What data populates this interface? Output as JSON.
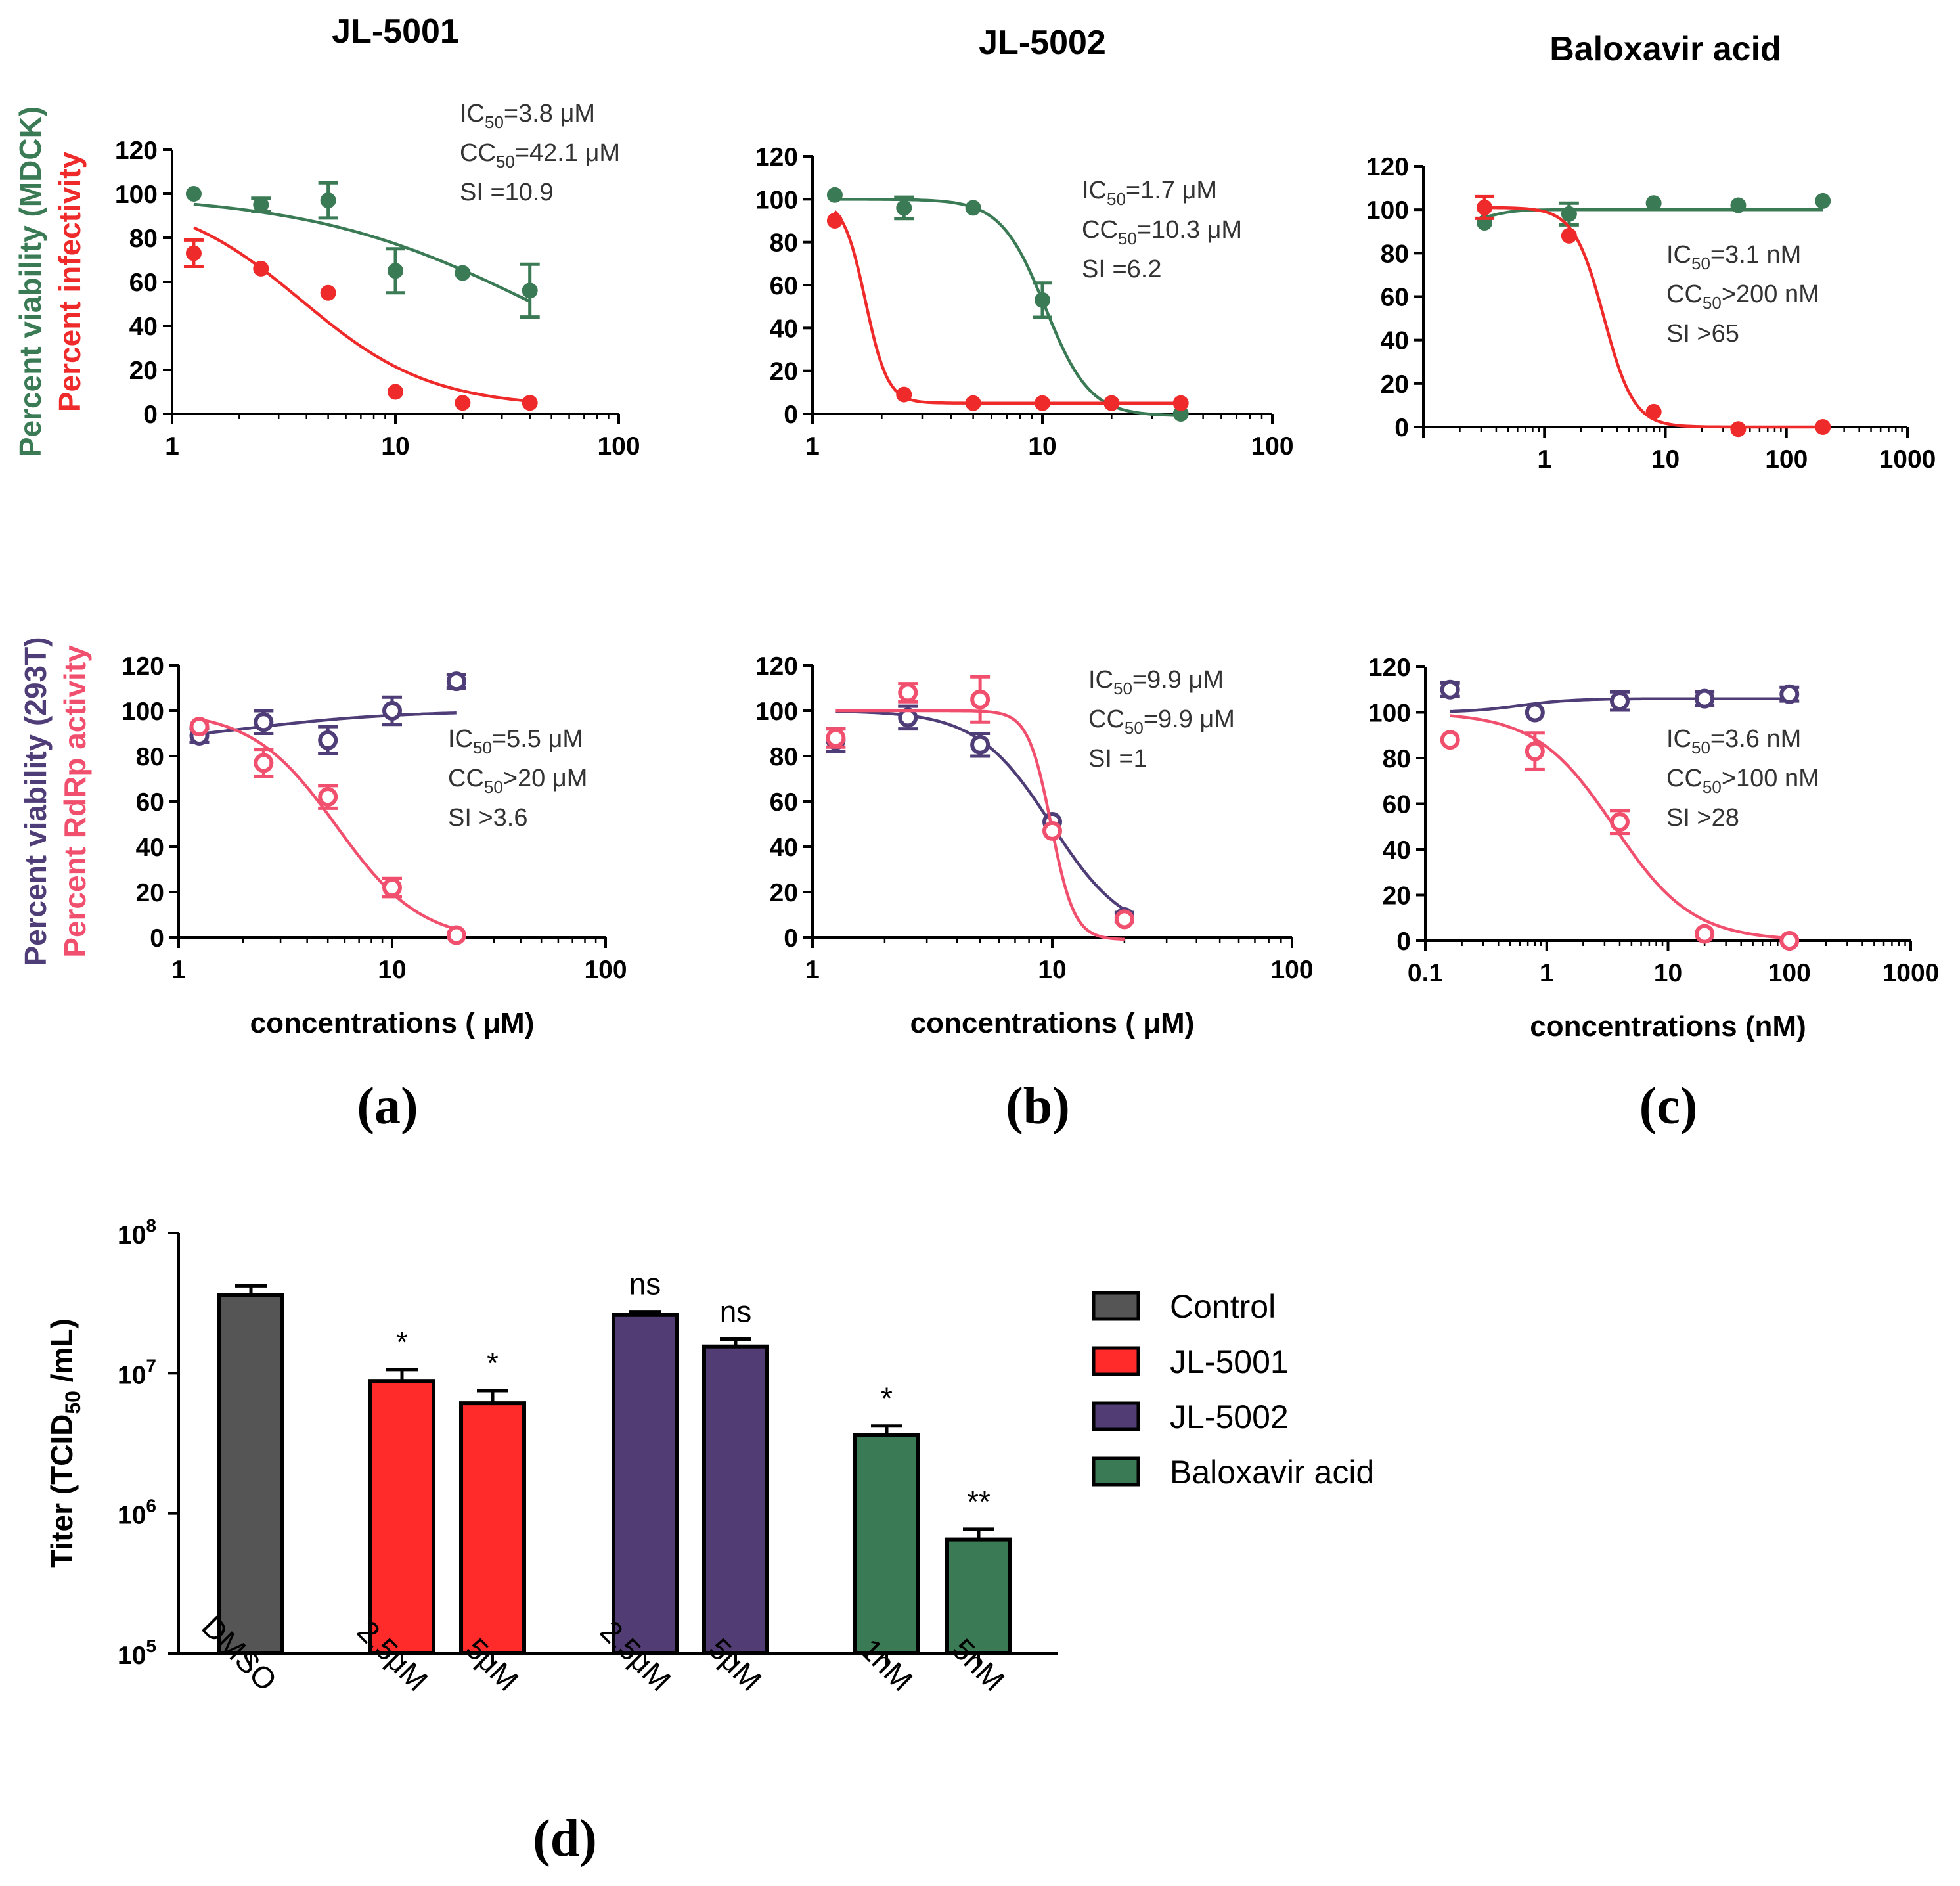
{
  "chart_data": [
    {
      "id": "a-top",
      "type": "scatter",
      "title": "JL-5001",
      "xscale": "log",
      "xlim": [
        1,
        100
      ],
      "ylim": [
        0,
        120
      ],
      "xticks": [
        "1",
        "10",
        "100"
      ],
      "yticks": [
        "0",
        "20",
        "40",
        "60",
        "80",
        "100",
        "120"
      ],
      "ylabel_lines": [
        {
          "text": "Percent viability (MDCK)",
          "color": "#3a7a55"
        },
        {
          "text": "Percent infectivity",
          "color": "#ee2a2a"
        }
      ],
      "xlabel": "",
      "annotations": [
        {
          "pre": "IC",
          "sub": "50",
          "post": "=3.8  μM"
        },
        {
          "pre": "CC",
          "sub": "50",
          "post": "=42.1 μM"
        },
        {
          "pre": "SI =10.9",
          "sub": "",
          "post": ""
        }
      ],
      "series": [
        {
          "name": "Percent viability (MDCK)",
          "color": "#3a7a55",
          "marker": "filled",
          "x": [
            1.25,
            2.5,
            5,
            10,
            20,
            40
          ],
          "y": [
            100,
            95,
            97,
            65,
            64,
            56
          ],
          "err": [
            0,
            3,
            8,
            10,
            0,
            12
          ],
          "fit": {
            "top": 100,
            "bottom": 0,
            "ec50": 42.1,
            "hill": 0.85,
            "xmin": 1.25,
            "xmax": 40
          }
        },
        {
          "name": "Percent infectivity",
          "color": "#ee2a2a",
          "marker": "filled",
          "x": [
            1.25,
            2.5,
            5,
            10,
            20,
            40
          ],
          "y": [
            73,
            66,
            55,
            10,
            5,
            5
          ],
          "err": [
            6,
            0,
            0,
            0,
            0,
            0
          ],
          "fit": {
            "top": 100,
            "bottom": 3,
            "ec50": 3.8,
            "hill": 1.5,
            "xmin": 1.25,
            "xmax": 40
          }
        }
      ]
    },
    {
      "id": "b-top",
      "type": "scatter",
      "title": "JL-5002",
      "xscale": "log",
      "xlim": [
        1,
        100
      ],
      "ylim": [
        0,
        120
      ],
      "xticks": [
        "1",
        "10",
        "100"
      ],
      "yticks": [
        "0",
        "20",
        "40",
        "60",
        "80",
        "100",
        "120"
      ],
      "xlabel": "",
      "annotations": [
        {
          "pre": "IC",
          "sub": "50",
          "post": "=1.7  μM"
        },
        {
          "pre": "CC",
          "sub": "50",
          "post": "=10.3  μM"
        },
        {
          "pre": "SI =6.2",
          "sub": "",
          "post": ""
        }
      ],
      "series": [
        {
          "name": "Percent viability (MDCK)",
          "color": "#3a7a55",
          "marker": "filled",
          "x": [
            1.25,
            2.5,
            5,
            10,
            20,
            40
          ],
          "y": [
            102,
            96,
            96,
            53,
            5,
            0
          ],
          "err": [
            0,
            5,
            0,
            8,
            0,
            0
          ],
          "fit": {
            "top": 100,
            "bottom": -1,
            "ec50": 10.3,
            "hill": 4.5,
            "xmin": 1.25,
            "xmax": 40
          }
        },
        {
          "name": "Percent infectivity",
          "color": "#ee2a2a",
          "marker": "filled",
          "x": [
            1.25,
            2.5,
            5,
            10,
            20,
            40
          ],
          "y": [
            90,
            9,
            5,
            5,
            5,
            5
          ],
          "err": [
            0,
            0,
            0,
            0,
            0,
            0
          ],
          "fit": {
            "top": 100,
            "bottom": 5,
            "ec50": 1.7,
            "hill": 9,
            "xmin": 1.25,
            "xmax": 40
          }
        }
      ]
    },
    {
      "id": "c-top",
      "type": "scatter",
      "title": "Baloxavir acid",
      "xscale": "log",
      "xlim": [
        0.1,
        1000
      ],
      "ylim": [
        0,
        120
      ],
      "xticks": [
        "1",
        "10",
        "100",
        "1000"
      ],
      "yticks": [
        "0",
        "20",
        "40",
        "60",
        "80",
        "100",
        "120"
      ],
      "xlabel": "",
      "annotations": [
        {
          "pre": "IC",
          "sub": "50",
          "post": "=3.1  nM"
        },
        {
          "pre": "CC",
          "sub": "50",
          "post": ">200 nM"
        },
        {
          "pre": "SI >65",
          "sub": "",
          "post": ""
        }
      ],
      "series": [
        {
          "name": "Percent viability (MDCK)",
          "color": "#3a7a55",
          "marker": "filled",
          "x": [
            0.32,
            1.6,
            8,
            40,
            200
          ],
          "y": [
            94,
            98,
            103,
            102,
            104
          ],
          "err": [
            0,
            5,
            0,
            0,
            0
          ],
          "fit": {
            "top": 100,
            "bottom": 94,
            "ec50": 0.35,
            "hill": -4,
            "xmin": 0.32,
            "xmax": 200
          }
        },
        {
          "name": "Percent infectivity",
          "color": "#ee2a2a",
          "marker": "filled",
          "x": [
            0.32,
            1.6,
            8,
            40,
            200
          ],
          "y": [
            101,
            88,
            7,
            -1,
            0
          ],
          "err": [
            5,
            0,
            0,
            0,
            0
          ],
          "fit": {
            "top": 101,
            "bottom": 0,
            "ec50": 3.1,
            "hill": 3.5,
            "xmin": 0.32,
            "xmax": 200
          }
        }
      ]
    },
    {
      "id": "a-bottom",
      "type": "scatter",
      "title": "",
      "xscale": "log",
      "xlim": [
        1,
        100
      ],
      "ylim": [
        0,
        120
      ],
      "xticks": [
        "1",
        "10",
        "100"
      ],
      "yticks": [
        "0",
        "20",
        "40",
        "60",
        "80",
        "100",
        "120"
      ],
      "ylabel_lines": [
        {
          "text": "Percent viability (293T)",
          "color": "#4f3d78"
        },
        {
          "text": "Percent RdRp activity",
          "color": "#f0506e"
        }
      ],
      "xlabel": "concentrations ( μM)",
      "annotations": [
        {
          "pre": "IC",
          "sub": "50",
          "post": "=5.5  μM"
        },
        {
          "pre": "CC",
          "sub": "50",
          "post": ">20  μM"
        },
        {
          "pre": "SI >3.6",
          "sub": "",
          "post": ""
        }
      ],
      "series": [
        {
          "name": "Percent viability (293T)",
          "color": "#4f3d78",
          "marker": "open",
          "x": [
            1.25,
            2.5,
            5,
            10,
            20
          ],
          "y": [
            89,
            95,
            87,
            100,
            113
          ],
          "err": [
            3,
            5,
            6,
            6,
            3
          ],
          "fit": {
            "top": 100,
            "bottom": 84,
            "ec50": 2,
            "hill": -1.2,
            "xmin": 1.25,
            "xmax": 20
          }
        },
        {
          "name": "Percent RdRp activity",
          "color": "#f0506e",
          "marker": "open",
          "x": [
            1.25,
            2.5,
            5,
            10,
            20
          ],
          "y": [
            93,
            77,
            62,
            22,
            1
          ],
          "err": [
            0,
            6,
            5,
            4,
            0
          ],
          "fit": {
            "top": 100,
            "bottom": -2,
            "ec50": 5.5,
            "hill": 2.2,
            "xmin": 1.25,
            "xmax": 20
          }
        }
      ]
    },
    {
      "id": "b-bottom",
      "type": "scatter",
      "title": "",
      "xscale": "log",
      "xlim": [
        1,
        100
      ],
      "ylim": [
        0,
        120
      ],
      "xticks": [
        "1",
        "10",
        "100"
      ],
      "yticks": [
        "0",
        "20",
        "40",
        "60",
        "80",
        "100",
        "120"
      ],
      "xlabel": "concentrations ( μM)",
      "annotations": [
        {
          "pre": "IC",
          "sub": "50",
          "post": "=9.9  μM"
        },
        {
          "pre": "CC",
          "sub": "50",
          "post": "=9.9  μM"
        },
        {
          "pre": "SI =1",
          "sub": "",
          "post": ""
        }
      ],
      "series": [
        {
          "name": "Percent viability (293T)",
          "color": "#4f3d78",
          "marker": "open",
          "x": [
            1.25,
            2.5,
            5,
            10,
            20
          ],
          "y": [
            87,
            97,
            85,
            51,
            9
          ],
          "err": [
            5,
            5,
            5,
            0,
            2
          ],
          "fit": {
            "top": 100,
            "bottom": 0,
            "ec50": 9.9,
            "hill": 2.8,
            "xmin": 1.25,
            "xmax": 20
          }
        },
        {
          "name": "Percent RdRp activity",
          "color": "#f0506e",
          "marker": "open",
          "x": [
            1.25,
            2.5,
            5,
            10,
            20
          ],
          "y": [
            88,
            108,
            105,
            47,
            8
          ],
          "err": [
            4,
            4,
            10,
            0,
            0
          ],
          "fit": {
            "top": 100,
            "bottom": -1,
            "ec50": 9.9,
            "hill": 9,
            "xmin": 1.25,
            "xmax": 20
          }
        }
      ]
    },
    {
      "id": "c-bottom",
      "type": "scatter",
      "title": "",
      "xscale": "log",
      "xlim": [
        0.1,
        1000
      ],
      "ylim": [
        0,
        120
      ],
      "xticks": [
        "0.1",
        "1",
        "10",
        "100",
        "1000"
      ],
      "yticks": [
        "0",
        "20",
        "40",
        "60",
        "80",
        "100",
        "120"
      ],
      "xlabel": "concentrations (nM)",
      "annotations": [
        {
          "pre": "IC",
          "sub": "50",
          "post": "=3.6  nM"
        },
        {
          "pre": "CC",
          "sub": "50",
          "post": ">100 nM"
        },
        {
          "pre": "SI >28",
          "sub": "",
          "post": ""
        }
      ],
      "series": [
        {
          "name": "Percent viability (293T)",
          "color": "#4f3d78",
          "marker": "open",
          "x": [
            0.16,
            0.8,
            4,
            20,
            100
          ],
          "y": [
            110,
            100,
            105,
            106,
            108
          ],
          "err": [
            3,
            0,
            4,
            3,
            3
          ],
          "fit": {
            "top": 106,
            "bottom": 100,
            "ec50": 0.6,
            "hill": -2,
            "xmin": 0.16,
            "xmax": 100
          }
        },
        {
          "name": "Percent RdRp activity",
          "color": "#f0506e",
          "marker": "open",
          "x": [
            0.16,
            0.8,
            4,
            20,
            100
          ],
          "y": [
            88,
            83,
            52,
            3,
            0
          ],
          "err": [
            0,
            8,
            5,
            0,
            0
          ],
          "fit": {
            "top": 100,
            "bottom": 0,
            "ec50": 3.6,
            "hill": 1.35,
            "xmin": 0.16,
            "xmax": 100
          }
        }
      ]
    },
    {
      "id": "d",
      "type": "bar",
      "yscale": "log",
      "ylim_exp": [
        5,
        8
      ],
      "yticks": [
        {
          "base": "10",
          "exp": "5"
        },
        {
          "base": "10",
          "exp": "6"
        },
        {
          "base": "10",
          "exp": "7"
        },
        {
          "base": "10",
          "exp": "8"
        }
      ],
      "ylabel": {
        "pre": "Titer (TCID",
        "sub": "50",
        "post": " /mL)"
      },
      "categories": [
        "DMSO",
        "2.5μM",
        "5μM",
        "2.5μM",
        "5μM",
        "1nM",
        "5nM"
      ],
      "values": [
        36000000,
        8800000,
        6100000,
        26000000,
        15500000,
        3600000,
        650000
      ],
      "errors": [
        6000000,
        1800000,
        1400000,
        1500000,
        2000000,
        600000,
        120000
      ],
      "groups": [
        0,
        1,
        1,
        2,
        2,
        3,
        3
      ],
      "significance": [
        "",
        "*",
        "*",
        "ns",
        "ns",
        "*",
        "**"
      ],
      "legend": [
        {
          "name": "Control",
          "color": "#555555"
        },
        {
          "name": "JL-5001",
          "color": "#ff2b2b"
        },
        {
          "name": "JL-5002",
          "color": "#523c74"
        },
        {
          "name": "Baloxavir acid",
          "color": "#3a7a55"
        }
      ]
    }
  ],
  "panel_labels": [
    "(a)",
    "(b)",
    "(c)",
    "(d)"
  ]
}
